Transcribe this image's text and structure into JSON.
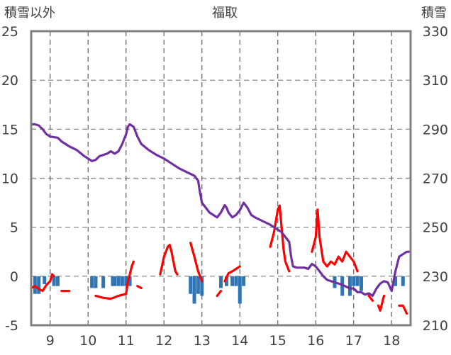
{
  "chart_data": {
    "type": "line",
    "title": "福取",
    "ylabel_left": "積雪以外",
    "ylabel_right": "積雪",
    "x_ticks": [
      "9",
      "10",
      "11",
      "12",
      "13",
      "14",
      "15",
      "16",
      "17",
      "18"
    ],
    "xlim": [
      8.5,
      18.5
    ],
    "ylim_left": [
      -5,
      25
    ],
    "ylim_right": [
      210,
      330
    ],
    "y_ticks_left": [
      "25",
      "20",
      "15",
      "10",
      "5",
      "0",
      "-5"
    ],
    "y_ticks_right": [
      "330",
      "310",
      "290",
      "270",
      "250",
      "230",
      "210"
    ],
    "grid": true,
    "series": [
      {
        "axis": "right",
        "color": "#7030a0",
        "style": "line",
        "points": [
          [
            8.5,
            292
          ],
          [
            8.6,
            292
          ],
          [
            8.7,
            291.5
          ],
          [
            8.8,
            290
          ],
          [
            8.9,
            288
          ],
          [
            9.0,
            287
          ],
          [
            9.2,
            286.5
          ],
          [
            9.3,
            285
          ],
          [
            9.5,
            283
          ],
          [
            9.7,
            281.5
          ],
          [
            9.9,
            279
          ],
          [
            10.0,
            278
          ],
          [
            10.1,
            277
          ],
          [
            10.2,
            277.5
          ],
          [
            10.3,
            279
          ],
          [
            10.4,
            279.5
          ],
          [
            10.5,
            280
          ],
          [
            10.6,
            281
          ],
          [
            10.7,
            280
          ],
          [
            10.8,
            281
          ],
          [
            10.9,
            284
          ],
          [
            11.0,
            288
          ],
          [
            11.05,
            291
          ],
          [
            11.1,
            292
          ],
          [
            11.2,
            291
          ],
          [
            11.3,
            287
          ],
          [
            11.4,
            284
          ],
          [
            11.6,
            281.5
          ],
          [
            11.8,
            279.5
          ],
          [
            12.0,
            278
          ],
          [
            12.2,
            276
          ],
          [
            12.4,
            274
          ],
          [
            12.6,
            272.5
          ],
          [
            12.8,
            271
          ],
          [
            12.9,
            269
          ],
          [
            12.95,
            264
          ],
          [
            13.0,
            260
          ],
          [
            13.1,
            258
          ],
          [
            13.2,
            256
          ],
          [
            13.3,
            255
          ],
          [
            13.4,
            254
          ],
          [
            13.5,
            256
          ],
          [
            13.6,
            259
          ],
          [
            13.65,
            258
          ],
          [
            13.7,
            256
          ],
          [
            13.8,
            254
          ],
          [
            13.9,
            255
          ],
          [
            14.0,
            257
          ],
          [
            14.1,
            260
          ],
          [
            14.2,
            258
          ],
          [
            14.3,
            255
          ],
          [
            14.4,
            254
          ],
          [
            14.6,
            252.5
          ],
          [
            14.8,
            251
          ],
          [
            15.0,
            249
          ],
          [
            15.1,
            248
          ],
          [
            15.2,
            246
          ],
          [
            15.3,
            244
          ],
          [
            15.35,
            238
          ],
          [
            15.4,
            234
          ],
          [
            15.5,
            233.5
          ],
          [
            15.6,
            233.5
          ],
          [
            15.7,
            233.5
          ],
          [
            15.8,
            233
          ],
          [
            15.9,
            235
          ],
          [
            16.0,
            234
          ],
          [
            16.1,
            232
          ],
          [
            16.2,
            230
          ],
          [
            16.3,
            228.5
          ],
          [
            16.5,
            227.5
          ],
          [
            16.7,
            226.5
          ],
          [
            16.9,
            225
          ],
          [
            17.0,
            225
          ],
          [
            17.1,
            223.5
          ],
          [
            17.2,
            223.5
          ],
          [
            17.3,
            222.5
          ],
          [
            17.4,
            223
          ],
          [
            17.5,
            222
          ],
          [
            17.6,
            225
          ],
          [
            17.7,
            227
          ],
          [
            17.8,
            228
          ],
          [
            17.9,
            227.5
          ],
          [
            18.0,
            224
          ],
          [
            18.1,
            232
          ],
          [
            18.2,
            238
          ],
          [
            18.3,
            239
          ],
          [
            18.4,
            240
          ],
          [
            18.5,
            240
          ]
        ]
      },
      {
        "axis": "left",
        "color": "#ff0000",
        "style": "segments",
        "segments": [
          [
            [
              8.5,
              -1.2
            ],
            [
              8.6,
              -1.0
            ],
            [
              8.7,
              -1.3
            ],
            [
              8.8,
              -1.5
            ],
            [
              8.9,
              -0.9
            ],
            [
              9.0,
              -0.5
            ],
            [
              9.05,
              0.2
            ],
            [
              9.1,
              0.0
            ]
          ],
          [
            [
              9.3,
              -1.5
            ],
            [
              9.4,
              -1.5
            ],
            [
              9.5,
              -1.5
            ]
          ],
          [
            [
              10.2,
              -2.0
            ],
            [
              10.4,
              -2.2
            ],
            [
              10.6,
              -2.3
            ],
            [
              10.8,
              -2.0
            ],
            [
              11.0,
              -1.8
            ],
            [
              11.05,
              -0.5
            ],
            [
              11.1,
              0.2
            ],
            [
              11.15,
              1.0
            ],
            [
              11.2,
              1.5
            ]
          ],
          [
            [
              11.3,
              -1.0
            ],
            [
              11.4,
              -1.2
            ]
          ],
          [
            [
              11.9,
              0.2
            ],
            [
              12.0,
              2.0
            ],
            [
              12.1,
              3.0
            ],
            [
              12.15,
              3.2
            ],
            [
              12.2,
              2.5
            ],
            [
              12.3,
              0.5
            ],
            [
              12.35,
              0.2
            ]
          ],
          [
            [
              12.7,
              3.4
            ],
            [
              12.8,
              2.0
            ],
            [
              12.9,
              0.5
            ],
            [
              13.0,
              -0.5
            ]
          ],
          [
            [
              13.4,
              -2.0
            ],
            [
              13.5,
              -1.5
            ]
          ],
          [
            [
              13.6,
              -0.5
            ],
            [
              13.7,
              0.3
            ],
            [
              13.8,
              0.5
            ],
            [
              14.0,
              1.0
            ]
          ],
          [
            [
              14.8,
              3.0
            ],
            [
              14.9,
              4.5
            ],
            [
              15.0,
              6.8
            ],
            [
              15.05,
              7.2
            ],
            [
              15.1,
              5.0
            ],
            [
              15.15,
              2.8
            ],
            [
              15.2,
              1.5
            ],
            [
              15.3,
              0.5
            ]
          ],
          [
            [
              15.9,
              2.5
            ],
            [
              16.0,
              4.0
            ],
            [
              16.05,
              6.8
            ],
            [
              16.1,
              4.0
            ],
            [
              16.2,
              1.5
            ],
            [
              16.3,
              1.0
            ],
            [
              16.4,
              1.5
            ],
            [
              16.5,
              1.2
            ],
            [
              16.6,
              2.0
            ],
            [
              16.7,
              1.5
            ],
            [
              16.8,
              2.5
            ],
            [
              16.9,
              2.0
            ],
            [
              17.0,
              1.5
            ],
            [
              17.1,
              0.5
            ]
          ],
          [
            [
              17.4,
              -2.0
            ],
            [
              17.5,
              -2.5
            ]
          ],
          [
            [
              17.65,
              -3.0
            ],
            [
              17.7,
              -3.5
            ],
            [
              17.8,
              -2.0
            ]
          ],
          [
            [
              18.2,
              -3.0
            ],
            [
              18.3,
              -3.0
            ],
            [
              18.4,
              -3.8
            ]
          ]
        ]
      },
      {
        "axis": "left",
        "color": "#2e75b6",
        "style": "bars",
        "points": [
          [
            8.6,
            -1.8
          ],
          [
            8.7,
            -1.8
          ],
          [
            8.85,
            -0.8
          ],
          [
            9.1,
            -1.0
          ],
          [
            9.2,
            -1.0
          ],
          [
            10.1,
            -1.2
          ],
          [
            10.2,
            -1.2
          ],
          [
            10.4,
            -1.2
          ],
          [
            10.65,
            -1.0
          ],
          [
            10.7,
            -1.0
          ],
          [
            10.8,
            -1.0
          ],
          [
            10.9,
            -1.0
          ],
          [
            11.0,
            -1.0
          ],
          [
            11.1,
            -1.0
          ],
          [
            12.7,
            -1.8
          ],
          [
            12.8,
            -2.8
          ],
          [
            12.9,
            -1.8
          ],
          [
            13.0,
            -2.0
          ],
          [
            13.5,
            -1.2
          ],
          [
            13.65,
            -1.0
          ],
          [
            13.8,
            -1.0
          ],
          [
            13.9,
            -1.0
          ],
          [
            14.0,
            -2.8
          ],
          [
            14.1,
            -1.0
          ],
          [
            16.5,
            -1.2
          ],
          [
            16.7,
            -2.0
          ],
          [
            16.9,
            -2.0
          ],
          [
            17.0,
            -1.0
          ],
          [
            17.1,
            -1.0
          ],
          [
            17.2,
            -1.5
          ],
          [
            18.1,
            -1.0
          ],
          [
            18.3,
            -1.0
          ]
        ]
      }
    ]
  }
}
